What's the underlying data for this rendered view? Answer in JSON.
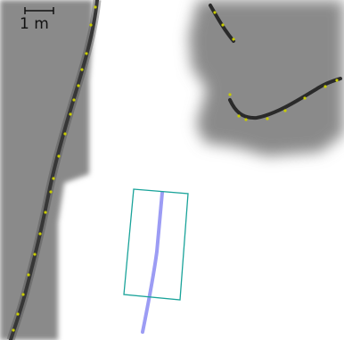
{
  "scale_bar": {
    "label": "1 m"
  },
  "colors": {
    "unknown": "#8a8a8a",
    "free": "#ffffff",
    "obstacle": "#2a2a2a",
    "laser_points": "#c8cc00",
    "path": "#9c9cf4",
    "footprint": "#1aa39a"
  }
}
